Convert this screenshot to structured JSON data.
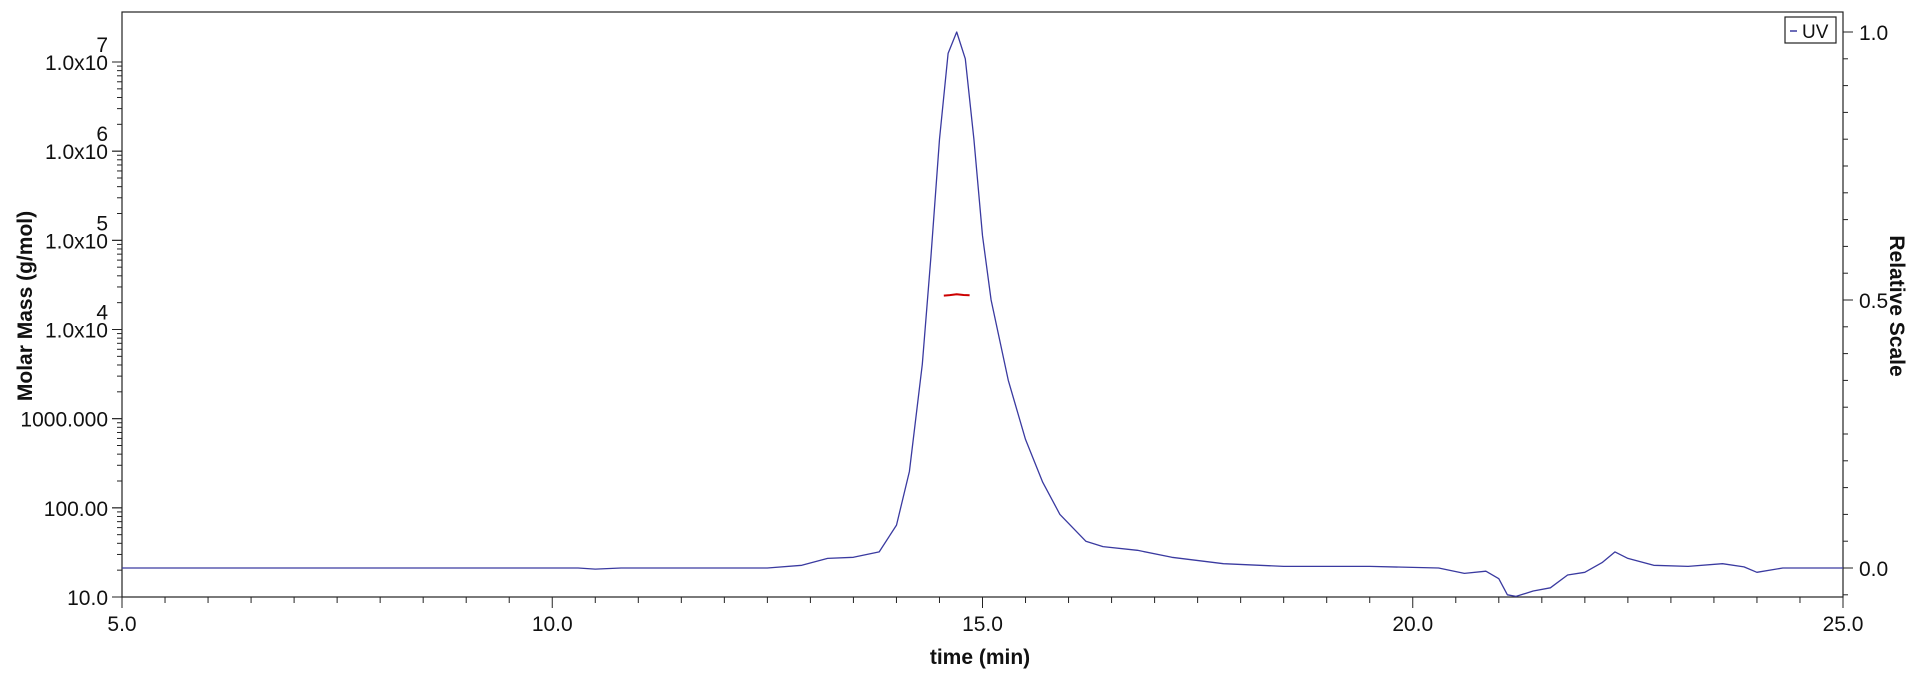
{
  "chart_data": {
    "type": "line",
    "title": "",
    "xlabel": "time (min)",
    "ylabel_left": "Molar Mass (g/mol)",
    "ylabel_right": "Relative Scale",
    "xlim": [
      5.0,
      25.0
    ],
    "x_ticks": [
      {
        "value": 5.0,
        "label": "5.0"
      },
      {
        "value": 10.0,
        "label": "10.0"
      },
      {
        "value": 15.0,
        "label": "15.0"
      },
      {
        "value": 20.0,
        "label": "20.0"
      },
      {
        "value": 25.0,
        "label": "25.0"
      }
    ],
    "y_left_scale": "log",
    "y_left_ticks": [
      {
        "value": 10,
        "mantissa": "10.0",
        "exp": ""
      },
      {
        "value": 100,
        "mantissa": "100.00",
        "exp": ""
      },
      {
        "value": 1000,
        "mantissa": "1000.000",
        "exp": ""
      },
      {
        "value": 10000,
        "mantissa": "1.0x10",
        "exp": "4"
      },
      {
        "value": 100000,
        "mantissa": "1.0x10",
        "exp": "5"
      },
      {
        "value": 1000000,
        "mantissa": "1.0x10",
        "exp": "6"
      },
      {
        "value": 10000000,
        "mantissa": "1.0x10",
        "exp": "7"
      }
    ],
    "y_right_ylim": [
      -0.05,
      1.03
    ],
    "y_right_ticks": [
      {
        "value": 0.0,
        "label": "0.0"
      },
      {
        "value": 0.5,
        "label": "0.5"
      },
      {
        "value": 1.0,
        "label": "1.0"
      }
    ],
    "legend": {
      "position": "top-right",
      "entries": [
        "UV"
      ]
    },
    "grid": false,
    "series": [
      {
        "name": "UV",
        "axis": "right",
        "color": "#3a3aa0",
        "points": [
          [
            5.0,
            0.0
          ],
          [
            8.0,
            0.0
          ],
          [
            10.3,
            0.0
          ],
          [
            10.5,
            -0.002
          ],
          [
            10.8,
            0.0
          ],
          [
            12.5,
            0.0
          ],
          [
            12.9,
            0.005
          ],
          [
            13.2,
            0.018
          ],
          [
            13.5,
            0.02
          ],
          [
            13.8,
            0.03
          ],
          [
            14.0,
            0.08
          ],
          [
            14.15,
            0.18
          ],
          [
            14.3,
            0.38
          ],
          [
            14.4,
            0.58
          ],
          [
            14.5,
            0.8
          ],
          [
            14.6,
            0.96
          ],
          [
            14.7,
            1.0
          ],
          [
            14.8,
            0.95
          ],
          [
            14.9,
            0.8
          ],
          [
            15.0,
            0.62
          ],
          [
            15.1,
            0.5
          ],
          [
            15.3,
            0.35
          ],
          [
            15.5,
            0.24
          ],
          [
            15.7,
            0.16
          ],
          [
            15.9,
            0.1
          ],
          [
            16.2,
            0.05
          ],
          [
            16.4,
            0.04
          ],
          [
            16.8,
            0.033
          ],
          [
            17.2,
            0.02
          ],
          [
            17.8,
            0.008
          ],
          [
            18.5,
            0.003
          ],
          [
            19.5,
            0.003
          ],
          [
            20.3,
            0.0
          ],
          [
            20.6,
            -0.01
          ],
          [
            20.85,
            -0.006
          ],
          [
            21.0,
            -0.02
          ],
          [
            21.1,
            -0.05
          ],
          [
            21.2,
            -0.053
          ],
          [
            21.4,
            -0.043
          ],
          [
            21.6,
            -0.037
          ],
          [
            21.8,
            -0.013
          ],
          [
            22.0,
            -0.008
          ],
          [
            22.2,
            0.01
          ],
          [
            22.35,
            0.03
          ],
          [
            22.5,
            0.018
          ],
          [
            22.8,
            0.005
          ],
          [
            23.2,
            0.003
          ],
          [
            23.6,
            0.008
          ],
          [
            23.85,
            0.002
          ],
          [
            24.0,
            -0.008
          ],
          [
            24.3,
            0.0
          ],
          [
            25.0,
            0.0
          ]
        ]
      },
      {
        "name": "",
        "axis": "left",
        "color": "#cc0000",
        "points": [
          [
            14.55,
            24000
          ],
          [
            14.62,
            24300
          ],
          [
            14.7,
            24800
          ],
          [
            14.78,
            24400
          ],
          [
            14.85,
            24200
          ]
        ]
      }
    ]
  }
}
